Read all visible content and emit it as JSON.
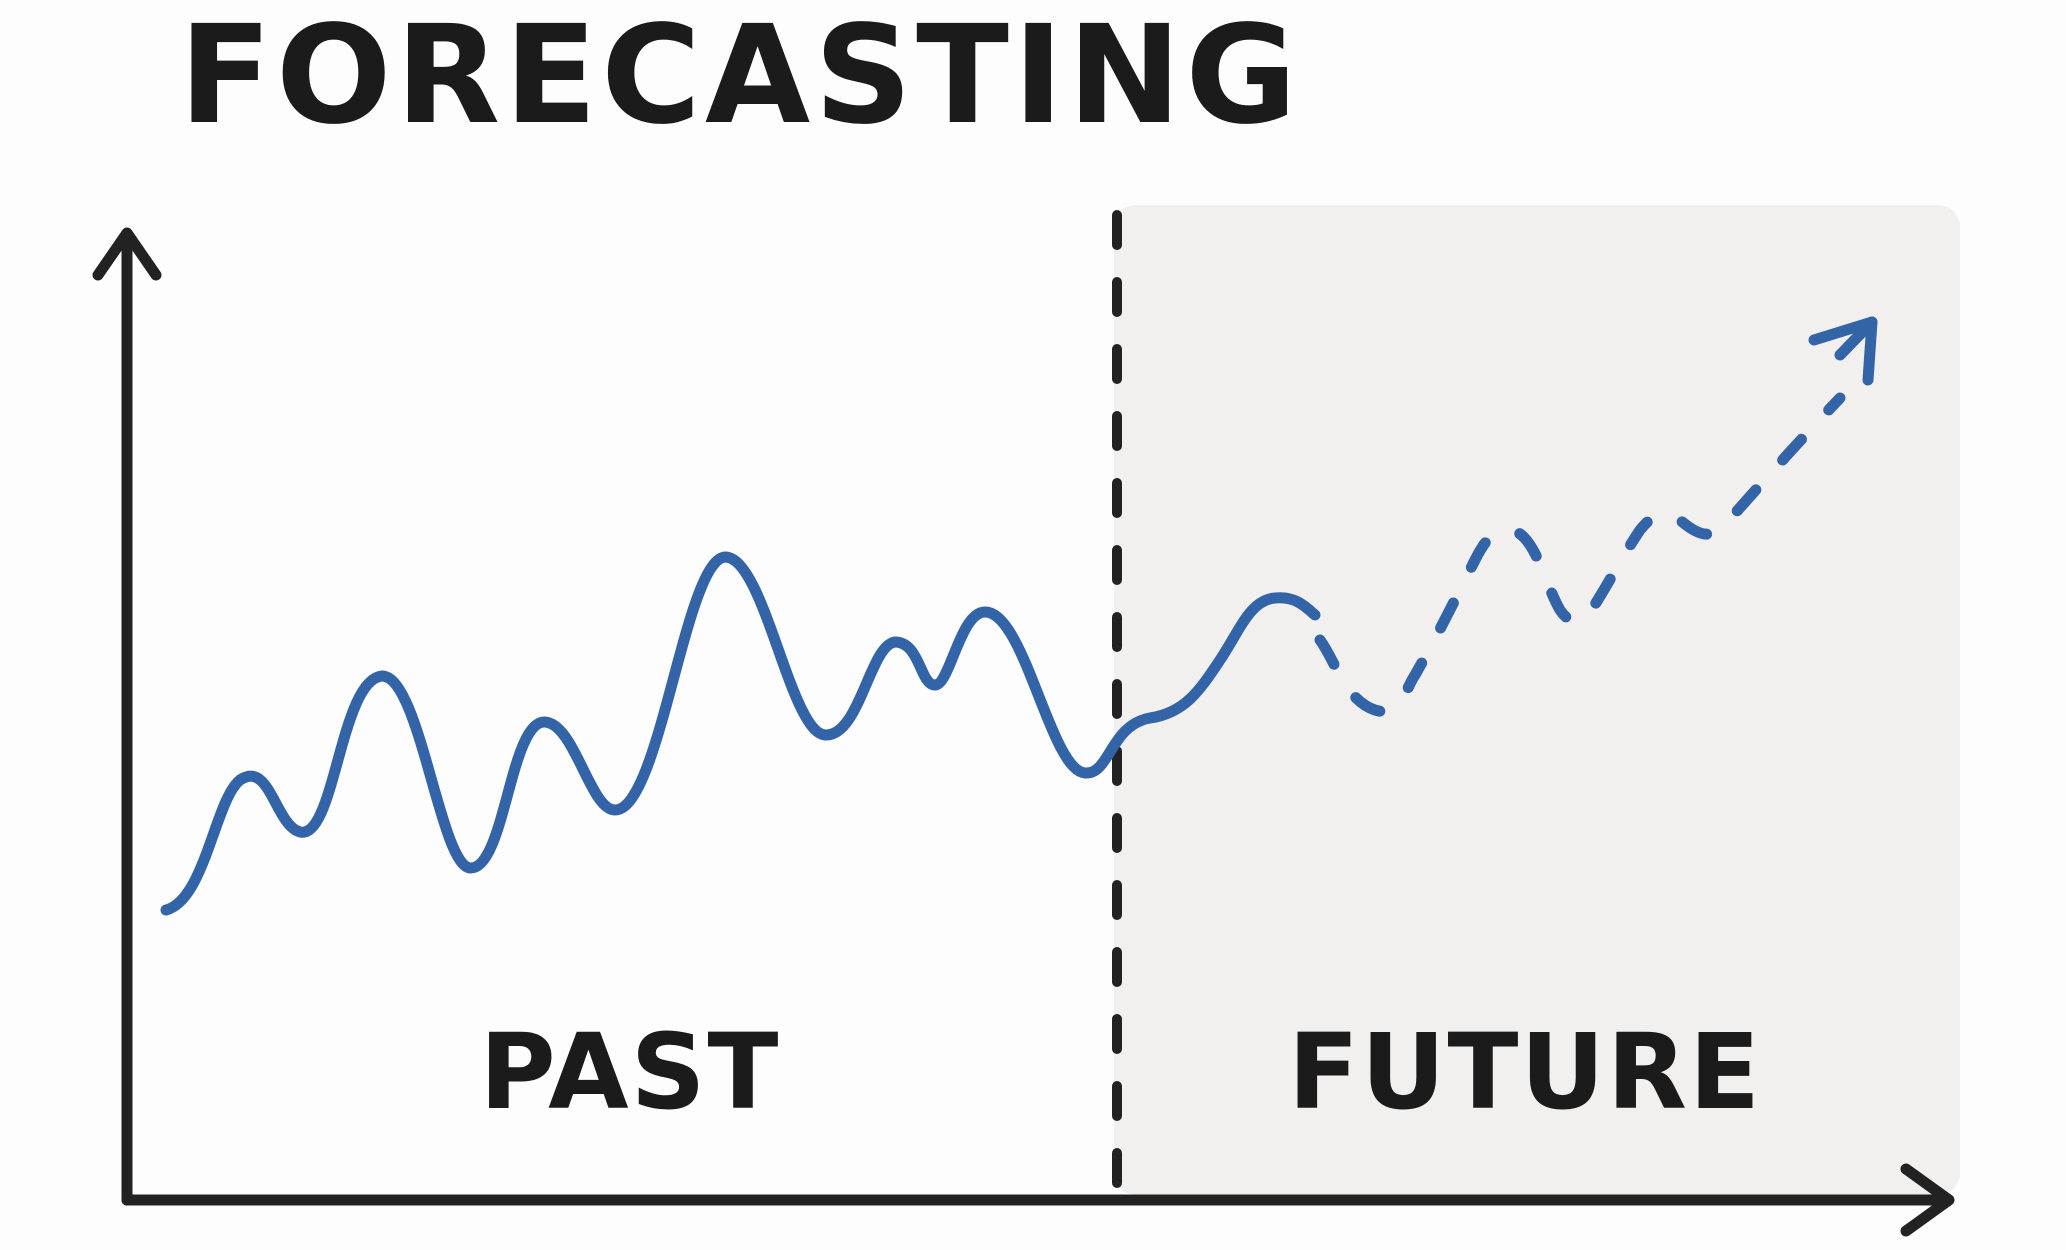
{
  "title": "FORECASTING",
  "regions": {
    "past_label": "PAST",
    "future_label": "FUTURE"
  },
  "colors": {
    "line": "#3464a8",
    "axis": "#222222",
    "future_background": "#f1f0ef",
    "text": "#1b1b1b"
  }
}
